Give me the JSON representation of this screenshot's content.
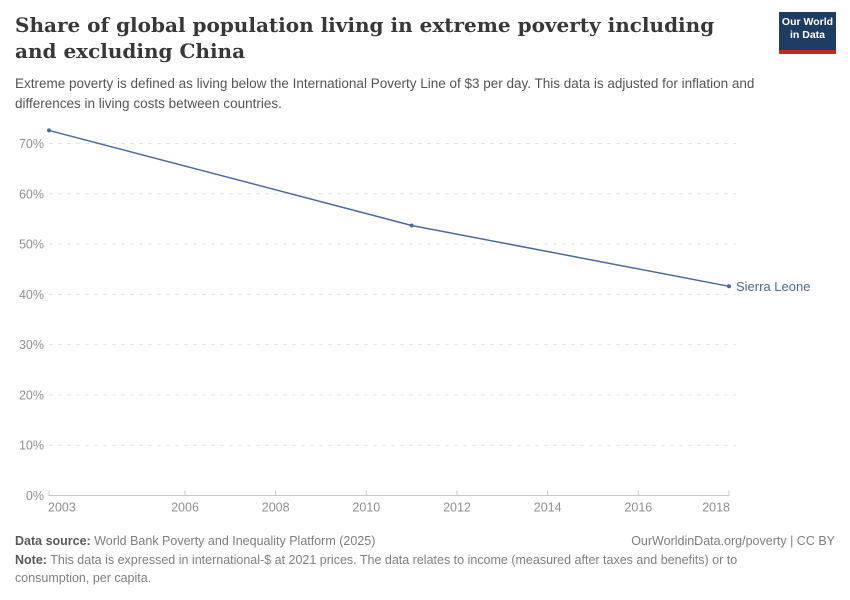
{
  "header": {
    "title": "Share of global population living in extreme poverty including and excluding China",
    "subtitle": "Extreme poverty is defined as living below the International Poverty Line of $3 per day. This data is adjusted for inflation and differences in living costs between countries.",
    "logo": {
      "line1": "Our World",
      "line2": "in Data",
      "bg_color": "#1d3d63",
      "bar_color": "#c5281c"
    }
  },
  "chart_data": {
    "type": "line",
    "title": "Share of global population living in extreme poverty including and excluding China",
    "series": [
      {
        "name": "Sierra Leone",
        "color": "#4c6a9c",
        "x": [
          2003,
          2011,
          2018
        ],
        "values": [
          72.6,
          53.7,
          41.6
        ]
      }
    ],
    "xlabel": "",
    "ylabel": "",
    "xlim": [
      2003,
      2018
    ],
    "ylim": [
      0,
      70
    ],
    "x_ticks": [
      2003,
      2006,
      2008,
      2010,
      2012,
      2014,
      2016,
      2018
    ],
    "y_ticks": [
      0,
      10,
      20,
      30,
      40,
      50,
      60,
      70
    ],
    "y_tick_suffix": "%",
    "grid": "horizontal-dashed",
    "legend_position": "end-of-line-label",
    "colors": {
      "grid": "#e2e2e2",
      "axis": "#c8c8c8",
      "tick_label": "#8f8f8f"
    }
  },
  "footer": {
    "data_source_label": "Data source:",
    "data_source": " World Bank Poverty and Inequality Platform (2025)",
    "citation": "OurWorldinData.org/poverty | CC BY",
    "note_label": "Note:",
    "note": " This data is expressed in international-$ at 2021 prices. The data relates to income (measured after taxes and benefits) or to consumption, per capita."
  }
}
